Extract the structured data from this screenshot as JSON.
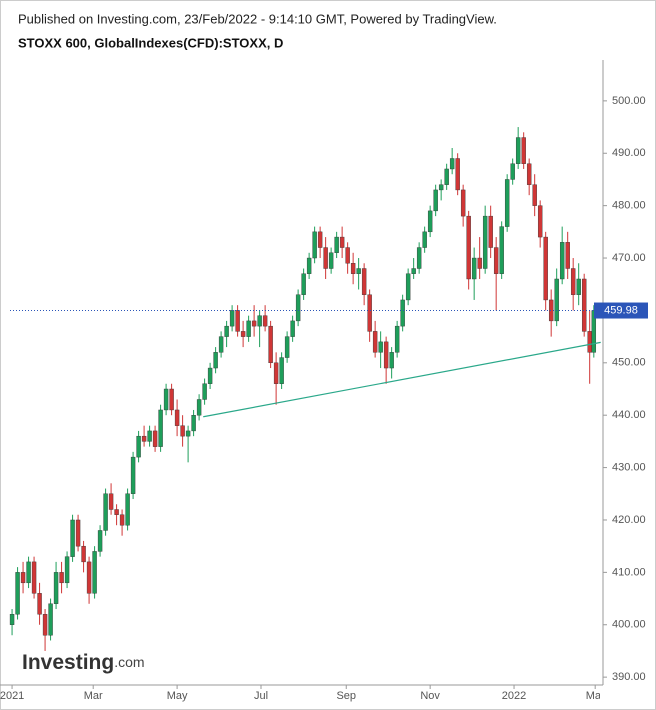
{
  "chart_data": {
    "type": "candlestick",
    "source": "Published on Investing.com, 23/Feb/2022 - 9:14:10 GMT, Powered by TradingView.",
    "title": "STOXX 600, GlobalIndexes(CFD):STOXX, D",
    "logo": {
      "name": "Investing",
      "suffix": ".com"
    },
    "up_color": "#1e9e5a",
    "down_color": "#d03636",
    "xlim": [
      -1.5,
      427.5
    ],
    "xticks": [
      {
        "value": 0,
        "label": "2021"
      },
      {
        "value": 59,
        "label": "Mar"
      },
      {
        "value": 120,
        "label": "May"
      },
      {
        "value": 181,
        "label": "Jul"
      },
      {
        "value": 243,
        "label": "Sep"
      },
      {
        "value": 304,
        "label": "Nov"
      },
      {
        "value": 365,
        "label": "2022"
      },
      {
        "value": 424,
        "label": "Mar"
      }
    ],
    "ylim": [
      388.5,
      507.8
    ],
    "yticks": [
      {
        "value": 390,
        "label": "390.00"
      },
      {
        "value": 400,
        "label": "400.00"
      },
      {
        "value": 410,
        "label": "410.00"
      },
      {
        "value": 420,
        "label": "420.00"
      },
      {
        "value": 430,
        "label": "430.00"
      },
      {
        "value": 440,
        "label": "440.00"
      },
      {
        "value": 450,
        "label": "450.00"
      },
      {
        "value": 460,
        "label": "460.00"
      },
      {
        "value": 470,
        "label": "470.00"
      },
      {
        "value": 480,
        "label": "480.00"
      },
      {
        "value": 490,
        "label": "490.00"
      },
      {
        "value": 500,
        "label": "500.00"
      }
    ],
    "last_price": 459.98,
    "trendline": {
      "x": [
        139,
        428
      ],
      "y": [
        439.7,
        453.9
      ],
      "color": "#2aa88a"
    },
    "x": [
      0,
      4,
      8,
      12,
      16,
      20,
      24,
      28,
      32,
      36,
      40,
      44,
      48,
      52,
      56,
      60,
      64,
      68,
      72,
      76,
      80,
      84,
      88,
      92,
      96,
      100,
      104,
      108,
      112,
      116,
      120,
      124,
      128,
      132,
      136,
      140,
      144,
      148,
      152,
      156,
      160,
      164,
      168,
      172,
      176,
      180,
      184,
      188,
      192,
      196,
      200,
      204,
      208,
      212,
      216,
      220,
      224,
      228,
      232,
      236,
      240,
      244,
      248,
      252,
      256,
      260,
      264,
      268,
      272,
      276,
      280,
      284,
      288,
      292,
      296,
      300,
      304,
      308,
      312,
      316,
      320,
      324,
      328,
      332,
      336,
      340,
      344,
      348,
      352,
      356,
      360,
      364,
      368,
      372,
      376,
      380,
      384,
      388,
      392,
      396,
      400,
      404,
      408,
      412,
      416,
      420,
      423
    ],
    "open": [
      400,
      402,
      410,
      408,
      412,
      406,
      402,
      398,
      404,
      410,
      408,
      413,
      420,
      415,
      412,
      406,
      414,
      418,
      425,
      422,
      421,
      419,
      425,
      432,
      436,
      435,
      437,
      434,
      441,
      445,
      441,
      438,
      436,
      437,
      440,
      443,
      446,
      449,
      452,
      455,
      457,
      460,
      456,
      455,
      458,
      457,
      459,
      457,
      450,
      446,
      451,
      455,
      458,
      463,
      467,
      470,
      475,
      472,
      468,
      471,
      474,
      472,
      469,
      467,
      468,
      463,
      456,
      452,
      454,
      449,
      452,
      457,
      462,
      467,
      468,
      472,
      475,
      479,
      483,
      484,
      487,
      489,
      483,
      478,
      466,
      470,
      468,
      478,
      472,
      467,
      476,
      485,
      488,
      493,
      488,
      484,
      480,
      474,
      462,
      458,
      466,
      473,
      468,
      463,
      466,
      456,
      452
    ],
    "high": [
      403,
      411,
      412,
      413,
      413,
      408,
      403,
      405,
      412,
      412,
      414,
      421,
      421,
      416,
      413,
      415,
      419,
      426,
      427,
      423,
      422,
      426,
      433,
      437,
      438,
      438,
      438,
      442,
      446,
      446,
      443,
      440,
      438,
      441,
      444,
      447,
      450,
      453,
      456,
      458,
      461,
      461,
      458,
      459,
      461,
      460,
      461,
      458,
      452,
      452,
      456,
      459,
      464,
      468,
      471,
      476,
      476,
      474,
      472,
      475,
      476,
      473,
      471,
      470,
      469,
      464,
      458,
      456,
      455,
      453,
      458,
      463,
      468,
      470,
      473,
      476,
      480,
      484,
      485,
      488,
      491,
      490,
      484,
      479,
      472,
      474,
      480,
      480,
      474,
      477,
      486,
      489,
      495,
      494,
      489,
      486,
      481,
      475,
      464,
      468,
      476,
      475,
      470,
      469,
      467,
      460,
      461
    ],
    "low": [
      398,
      401,
      406,
      407,
      405,
      400,
      395,
      397,
      403,
      406,
      407,
      412,
      414,
      410,
      404,
      405,
      413,
      417,
      421,
      419,
      417,
      418,
      424,
      431,
      434,
      434,
      433,
      433,
      440,
      440,
      436,
      434,
      431,
      436,
      439,
      442,
      445,
      448,
      451,
      453,
      456,
      455,
      453,
      454,
      455,
      453,
      456,
      449,
      442,
      445,
      450,
      454,
      457,
      462,
      466,
      469,
      470,
      466,
      467,
      470,
      470,
      467,
      465,
      464,
      461,
      454,
      451,
      449,
      446,
      447,
      451,
      456,
      461,
      466,
      467,
      471,
      474,
      478,
      481,
      483,
      486,
      482,
      476,
      464,
      462,
      466,
      467,
      470,
      460,
      466,
      475,
      484,
      487,
      487,
      482,
      478,
      472,
      460,
      455,
      457,
      465,
      466,
      460,
      461,
      455,
      446,
      451
    ],
    "close": [
      402,
      410,
      408,
      412,
      406,
      402,
      398,
      404,
      410,
      408,
      413,
      420,
      415,
      412,
      406,
      414,
      418,
      425,
      422,
      421,
      419,
      425,
      432,
      436,
      435,
      437,
      434,
      441,
      445,
      441,
      438,
      436,
      437,
      440,
      443,
      446,
      449,
      452,
      455,
      457,
      460,
      456,
      455,
      458,
      457,
      459,
      457,
      450,
      446,
      451,
      455,
      458,
      463,
      467,
      470,
      475,
      472,
      468,
      471,
      474,
      472,
      469,
      467,
      468,
      463,
      456,
      452,
      454,
      449,
      452,
      457,
      462,
      467,
      468,
      472,
      475,
      479,
      483,
      484,
      487,
      489,
      483,
      478,
      466,
      470,
      468,
      478,
      472,
      467,
      476,
      485,
      488,
      493,
      488,
      484,
      480,
      474,
      462,
      458,
      466,
      473,
      468,
      463,
      466,
      456,
      452,
      459.98
    ]
  }
}
